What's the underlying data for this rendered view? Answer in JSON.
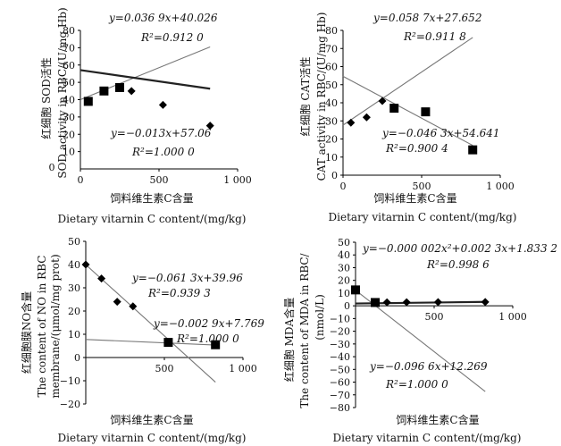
{
  "chart_data": [
    {
      "id": "sod",
      "type": "scatter",
      "ylabel_zh": "红细胞  SOD活性",
      "ylabel_en": "SOD activity in RBC/(U/mg Hb)",
      "xlabel_zh": "饲料维生素C含量",
      "xlabel_en": "Dietary vitarnin C content/(mg/kg)",
      "xlim": [
        0,
        1000
      ],
      "ylim": [
        0,
        80
      ],
      "xticks": [
        0,
        500,
        1000
      ],
      "xtick_labels": [
        "0",
        "500",
        "1 000"
      ],
      "yticks": [
        10,
        20,
        30,
        40,
        50,
        60,
        70,
        80
      ],
      "ytick_labels": [
        "10",
        "20",
        "30",
        "40",
        "50",
        "60",
        "70",
        "80"
      ],
      "origin_label": "0",
      "series": [
        {
          "marker": "square",
          "x": [
            50,
            150,
            250
          ],
          "y": [
            39,
            45,
            47
          ]
        },
        {
          "marker": "diamond",
          "x": [
            325,
            525,
            825
          ],
          "y": [
            45,
            37,
            25
          ]
        }
      ],
      "trendlines": [
        {
          "label": "y=0.036 9x+40.026",
          "r2": "R²=0.912 0",
          "slope": 0.0369,
          "intercept": 40.026,
          "x_range": [
            0,
            825
          ],
          "dark": false
        },
        {
          "label": "y=−0.013x+57.06",
          "r2": "R²=1.000 0",
          "slope": -0.013,
          "intercept": 57.06,
          "x_range": [
            0,
            825
          ],
          "dark": true
        }
      ]
    },
    {
      "id": "cat",
      "type": "scatter",
      "ylabel_zh": "红细胞  CAT活性",
      "ylabel_en": "CAT activity in RBC/(U/mg Hb)",
      "xlabel_zh": "饲料维生素C含量",
      "xlabel_en": "Dietary vitarnin C content/(mg/kg)",
      "xlim": [
        0,
        1000
      ],
      "ylim": [
        0,
        80
      ],
      "xticks": [
        0,
        500,
        1000
      ],
      "xtick_labels": [
        "0",
        "500",
        "1 000"
      ],
      "yticks": [
        0,
        10,
        20,
        30,
        40,
        50,
        60,
        70,
        80
      ],
      "ytick_labels": [
        "0",
        "10",
        "20",
        "30",
        "40",
        "50",
        "60",
        "70",
        "80"
      ],
      "series": [
        {
          "marker": "diamond",
          "x": [
            50,
            150,
            250
          ],
          "y": [
            29,
            32,
            41
          ]
        },
        {
          "marker": "square",
          "x": [
            325,
            525,
            825
          ],
          "y": [
            37,
            35,
            14
          ]
        }
      ],
      "trendlines": [
        {
          "label": "y=0.058 7x+27.652",
          "r2": "R²=0.911 8",
          "slope": 0.0587,
          "intercept": 27.652,
          "x_range": [
            0,
            825
          ],
          "dark": false
        },
        {
          "label": "y=−0.046 3x+54.641",
          "r2": "R²=0.900 4",
          "slope": -0.0463,
          "intercept": 54.641,
          "x_range": [
            0,
            825
          ],
          "dark": false
        }
      ]
    },
    {
      "id": "no",
      "type": "scatter",
      "ylabel_zh": "红细胞膜NO含量",
      "ylabel_en1": "The content of NO in RBC",
      "ylabel_en2": "membrane/(μmol/mg prot)",
      "xlabel_zh": "饲料维生素C含量",
      "xlabel_en": "Dietary vitarnin C content/(mg/kg)",
      "xlim": [
        0,
        1000
      ],
      "ylim": [
        -20,
        50
      ],
      "xticks": [
        500,
        1000
      ],
      "xtick_labels": [
        "500",
        "1 000"
      ],
      "yticks": [
        -20,
        -10,
        0,
        10,
        20,
        30,
        40,
        50
      ],
      "ytick_labels": [
        "−20",
        "−10",
        "0",
        "10",
        "20",
        "30",
        "40",
        "50"
      ],
      "series": [
        {
          "marker": "diamond",
          "x": [
            0,
            100,
            200,
            300
          ],
          "y": [
            40,
            34,
            24,
            22
          ]
        },
        {
          "marker": "square",
          "x": [
            525,
            825
          ],
          "y": [
            6.5,
            5.5
          ]
        }
      ],
      "trendlines": [
        {
          "label": "y=−0.061 3x+39.96",
          "r2": "R²=0.939 3",
          "slope": -0.0613,
          "intercept": 39.96,
          "x_range": [
            0,
            825
          ],
          "dark": false
        },
        {
          "label": "y=−0.002 9x+7.769",
          "r2": "R²=1.000 0",
          "slope": -0.0029,
          "intercept": 7.769,
          "x_range": [
            0,
            825
          ],
          "dark": false
        }
      ]
    },
    {
      "id": "mda",
      "type": "scatter",
      "ylabel_zh": "红细胞  MDA含量",
      "ylabel_en1": "The content of MDA in RBC/",
      "ylabel_en2": "(nmol/L)",
      "xlabel_zh": "饲料维生素C含量",
      "xlabel_en": "Dietary vitarnin C content/(mg/kg)",
      "xlim": [
        0,
        1000
      ],
      "ylim": [
        -80,
        50
      ],
      "xticks": [
        500,
        1000
      ],
      "xtick_labels": [
        "500",
        "1 000"
      ],
      "yticks": [
        -80,
        -70,
        -60,
        -50,
        -40,
        -30,
        -20,
        -10,
        0,
        10,
        20,
        30,
        40,
        50
      ],
      "ytick_labels": [
        "−80",
        "−70",
        "−60",
        "−50",
        "−40",
        "−30",
        "−20",
        "−10",
        "0",
        "10",
        "20",
        "30",
        "40",
        "50"
      ],
      "series": [
        {
          "marker": "square",
          "x": [
            0,
            125
          ],
          "y": [
            12.5,
            2.6
          ]
        },
        {
          "marker": "diamond",
          "x": [
            200,
            325,
            525,
            825
          ],
          "y": [
            2.7,
            2.8,
            2.9,
            3.0
          ]
        }
      ],
      "trendlines": [
        {
          "label": "y=−0.000 002x²+0.002 3x+1.833 2",
          "r2": "R²=0.998 6",
          "slope": 0.0015,
          "intercept": 1.8332,
          "x_range": [
            0,
            825
          ],
          "dark": true
        },
        {
          "label": "y=−0.096 6x+12.269",
          "r2": "R²=1.000 0",
          "slope": -0.0966,
          "intercept": 12.269,
          "x_range": [
            0,
            825
          ],
          "dark": false
        }
      ]
    }
  ]
}
